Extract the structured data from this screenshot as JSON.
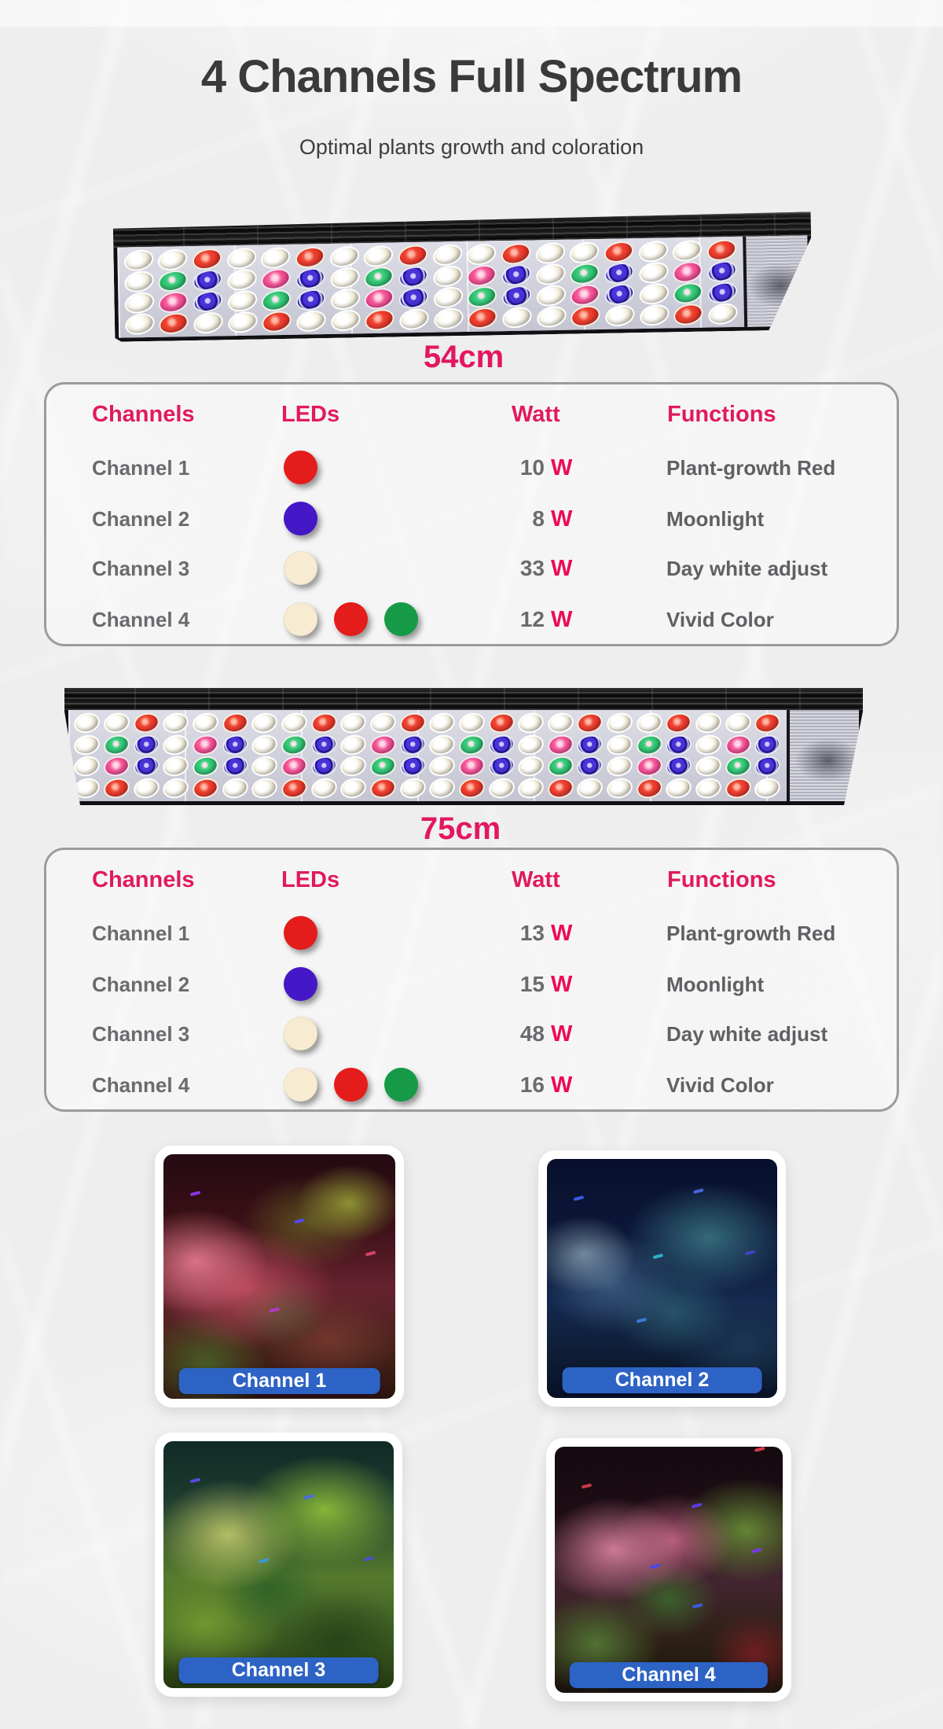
{
  "page": {
    "title": "4 Channels Full Spectrum",
    "subtitle": "Optimal plants growth and coloration"
  },
  "colors": {
    "accent_pink": "#e11a5b",
    "watt_unit_pink": "#ec0a57",
    "text_gray": "#6b6b6f",
    "table_border_gray": "#9b9b9b",
    "banner_blue": "#2d63c5",
    "background_gray": "#eeeeef",
    "dot_red": "#e41c1b",
    "dot_blue": "#4417c7",
    "dot_cream": "#f7ecd1",
    "dot_green": "#169a47"
  },
  "bars": [
    {
      "label": "54cm",
      "leds_per_row": 18
    },
    {
      "label": "75cm",
      "leds_per_row": 24
    }
  ],
  "led_pattern": {
    "rows": [
      {
        "period": [
          "W",
          "W",
          "R"
        ],
        "offset": 0
      },
      {
        "period": [
          "W",
          "G",
          "B",
          "W",
          "M",
          "B"
        ],
        "offset": 0
      },
      {
        "period": [
          "W",
          "M",
          "B",
          "W",
          "G",
          "B"
        ],
        "offset": 0
      },
      {
        "period": [
          "W",
          "W",
          "R"
        ],
        "offset": 1
      }
    ]
  },
  "tables": [
    {
      "headers": [
        "Channels",
        "LEDs",
        "Watt",
        "Functions"
      ],
      "rows": [
        {
          "channel": "Channel 1",
          "dots": [
            "red"
          ],
          "watt": "10",
          "watt_unit": "W",
          "function": "Plant-growth Red"
        },
        {
          "channel": "Channel 2",
          "dots": [
            "blue"
          ],
          "watt": "8",
          "watt_unit": "W",
          "function": "Moonlight"
        },
        {
          "channel": "Channel 3",
          "dots": [
            "cream"
          ],
          "watt": "33",
          "watt_unit": "W",
          "function": "Day white adjust"
        },
        {
          "channel": "Channel 4",
          "dots": [
            "cream",
            "red",
            "green"
          ],
          "watt": "12",
          "watt_unit": "W",
          "function": "Vivid Color"
        }
      ]
    },
    {
      "headers": [
        "Channels",
        "LEDs",
        "Watt",
        "Functions"
      ],
      "rows": [
        {
          "channel": "Channel 1",
          "dots": [
            "red"
          ],
          "watt": "13",
          "watt_unit": "W",
          "function": "Plant-growth Red"
        },
        {
          "channel": "Channel 2",
          "dots": [
            "blue"
          ],
          "watt": "15",
          "watt_unit": "W",
          "function": "Moonlight"
        },
        {
          "channel": "Channel 3",
          "dots": [
            "cream"
          ],
          "watt": "48",
          "watt_unit": "W",
          "function": "Day white adjust"
        },
        {
          "channel": "Channel 4",
          "dots": [
            "cream",
            "red",
            "green"
          ],
          "watt": "16",
          "watt_unit": "W",
          "function": "Vivid Color"
        }
      ]
    }
  ],
  "photos": [
    {
      "label": "Channel 1"
    },
    {
      "label": "Channel 2"
    },
    {
      "label": "Channel 3"
    },
    {
      "label": "Channel 4"
    }
  ]
}
